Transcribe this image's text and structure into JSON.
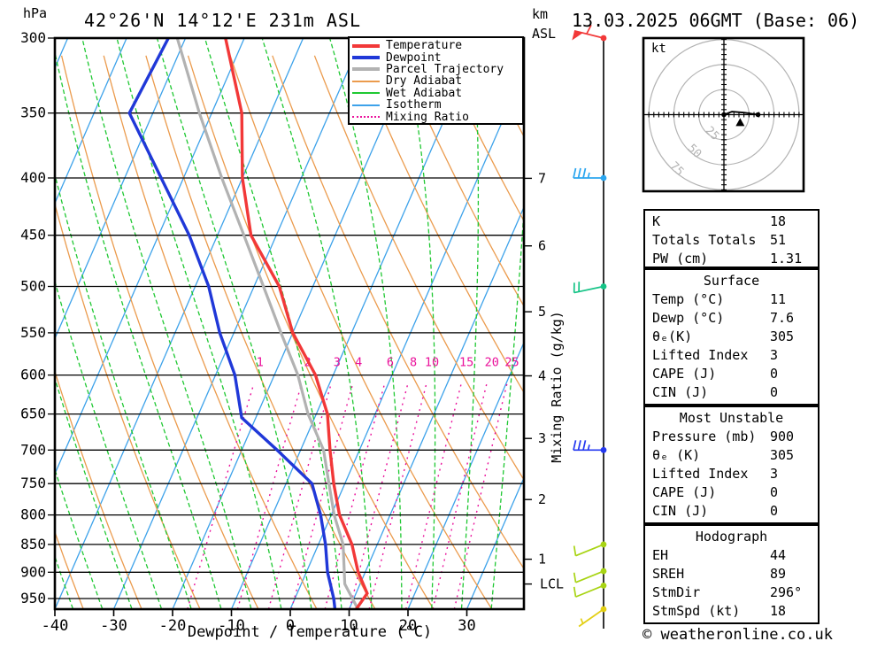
{
  "header": {
    "pressure_unit": "hPa",
    "km_line1": "km",
    "km_line2": "ASL"
  },
  "footer": {
    "copyright": "© weatheronline.co.uk"
  },
  "colors": {
    "temperature": "#f23838",
    "dewpoint": "#2038d8",
    "parcel": "#b2b2b2",
    "dry_adiabat": "#eb9b4d",
    "wet_adiabat": "#1fc832",
    "isotherm": "#3da2ea",
    "mixing_ratio": "#ea119b",
    "grid": "#000000",
    "hodo_rings": "#b4b4b4"
  },
  "legend": [
    {
      "label": "Temperature",
      "color": "#f23838",
      "width": 4,
      "dash": ""
    },
    {
      "label": "Dewpoint",
      "color": "#2038d8",
      "width": 4,
      "dash": ""
    },
    {
      "label": "Parcel Trajectory",
      "color": "#b2b2b2",
      "width": 4,
      "dash": ""
    },
    {
      "label": "Dry Adiabat",
      "color": "#eb9b4d",
      "width": 2,
      "dash": ""
    },
    {
      "label": "Wet Adiabat",
      "color": "#1fc832",
      "width": 2,
      "dash": ""
    },
    {
      "label": "Isotherm",
      "color": "#3da2ea",
      "width": 2,
      "dash": ""
    },
    {
      "label": "Mixing Ratio",
      "color": "#ea119b",
      "width": 2,
      "dash": "2,4"
    }
  ],
  "chart_data": {
    "type": "skewt_sounding",
    "title": "42°26'N 14°12'E 231m ASL",
    "valid": "13.03.2025 06GMT (Base: 06)",
    "x_axis": {
      "label": "Dewpoint / Temperature (°C)",
      "ticks": [
        -40,
        -30,
        -20,
        -10,
        0,
        10,
        20,
        30
      ]
    },
    "pressure_axis": {
      "unit": "hPa",
      "ticks": [
        300,
        350,
        400,
        450,
        500,
        550,
        600,
        650,
        700,
        750,
        800,
        850,
        900,
        950
      ],
      "range": [
        300,
        971
      ]
    },
    "km_axis": {
      "ticks": [
        7,
        6,
        5,
        4,
        3,
        2,
        1
      ],
      "lcl_label": "LCL",
      "lcl_pressure_hpa": 922
    },
    "mixing_ratio_axis": {
      "label": "Mixing Ratio (g/kg)",
      "lines_g_per_kg": [
        1,
        2,
        3,
        4,
        6,
        8,
        10,
        15,
        20,
        25
      ]
    },
    "background": {
      "isotherm_step_c": 10,
      "dry_adiabat_step_k": 10,
      "wet_adiabat_step_c": 5
    },
    "temperature_profile_p_T": [
      [
        971,
        11.2
      ],
      [
        940,
        11.9
      ],
      [
        900,
        8.8
      ],
      [
        850,
        5.7
      ],
      [
        800,
        1.4
      ],
      [
        750,
        -1.9
      ],
      [
        700,
        -5.0
      ],
      [
        650,
        -8.1
      ],
      [
        600,
        -13.0
      ],
      [
        550,
        -20.0
      ],
      [
        500,
        -25.7
      ],
      [
        450,
        -34.3
      ],
      [
        400,
        -40.0
      ],
      [
        350,
        -44.9
      ],
      [
        300,
        -53.2
      ]
    ],
    "dewpoint_profile_p_T": [
      [
        971,
        7.6
      ],
      [
        950,
        6.6
      ],
      [
        900,
        3.6
      ],
      [
        850,
        1.2
      ],
      [
        800,
        -1.8
      ],
      [
        750,
        -5.6
      ],
      [
        700,
        -14.0
      ],
      [
        655,
        -22.4
      ],
      [
        600,
        -26.7
      ],
      [
        550,
        -32.4
      ],
      [
        500,
        -37.7
      ],
      [
        450,
        -44.8
      ],
      [
        400,
        -53.8
      ],
      [
        350,
        -64.0
      ],
      [
        300,
        -62.9
      ]
    ],
    "parcel_profile_p_T": [
      [
        971,
        11.5
      ],
      [
        922,
        7.4
      ],
      [
        850,
        4.2
      ],
      [
        800,
        0.5
      ],
      [
        750,
        -2.7
      ],
      [
        700,
        -6.1
      ],
      [
        650,
        -11.4
      ],
      [
        600,
        -16.0
      ],
      [
        550,
        -22.0
      ],
      [
        500,
        -28.4
      ],
      [
        450,
        -35.5
      ],
      [
        400,
        -43.5
      ],
      [
        350,
        -52.1
      ],
      [
        300,
        -61.4
      ]
    ],
    "wind_barbs": [
      {
        "p": 300,
        "speed_kt": 60,
        "color": "#f23838",
        "flag": 1,
        "full": 1,
        "half": 0,
        "tilt": -14
      },
      {
        "p": 400,
        "speed_kt": 35,
        "color": "#2ba6ef",
        "flag": 0,
        "full": 3,
        "half": 1,
        "tilt": 0
      },
      {
        "p": 500,
        "speed_kt": 20,
        "color": "#16c487",
        "flag": 0,
        "full": 2,
        "half": 0,
        "tilt": 12
      },
      {
        "p": 700,
        "speed_kt": 35,
        "color": "#2438f0",
        "flag": 0,
        "full": 3,
        "half": 1,
        "tilt": 0
      },
      {
        "p": 850,
        "speed_kt": 10,
        "color": "#a8d414",
        "flag": 0,
        "full": 1,
        "half": 0,
        "tilt": 22
      },
      {
        "p": 898,
        "speed_kt": 10,
        "color": "#a8d414",
        "flag": 0,
        "full": 1,
        "half": 0,
        "tilt": 22
      },
      {
        "p": 925,
        "speed_kt": 10,
        "color": "#a8d414",
        "flag": 0,
        "full": 1,
        "half": 0,
        "tilt": 22
      },
      {
        "p": 971,
        "speed_kt": 5,
        "color": "#e3cf13",
        "flag": 0,
        "full": 0,
        "half": 1,
        "tilt": 35
      }
    ],
    "hodograph": {
      "unit_label": "kt",
      "rings_kt": [
        25,
        50,
        75
      ],
      "trace_uv_kt": [
        [
          0,
          0
        ],
        [
          8,
          3
        ],
        [
          20,
          2
        ],
        [
          34,
          0
        ]
      ],
      "storm_dir_deg": 296,
      "storm_spd_kt": 18
    }
  },
  "tables": {
    "stats": {
      "rows": [
        [
          "K",
          "18"
        ],
        [
          "Totals Totals",
          "51"
        ],
        [
          "PW (cm)",
          "1.31"
        ]
      ]
    },
    "surface": {
      "heading": "Surface",
      "rows": [
        [
          "Temp (°C)",
          "11"
        ],
        [
          "Dewp (°C)",
          "7.6"
        ],
        [
          "θₑ(K)",
          "305"
        ],
        [
          "Lifted Index",
          "3"
        ],
        [
          "CAPE (J)",
          "0"
        ],
        [
          "CIN (J)",
          "0"
        ]
      ]
    },
    "most_unstable": {
      "heading": "Most Unstable",
      "rows": [
        [
          "Pressure (mb)",
          "900"
        ],
        [
          "θₑ (K)",
          "305"
        ],
        [
          "Lifted Index",
          "3"
        ],
        [
          "CAPE (J)",
          "0"
        ],
        [
          "CIN (J)",
          "0"
        ]
      ]
    },
    "hodograph": {
      "heading": "Hodograph",
      "rows": [
        [
          "EH",
          "44"
        ],
        [
          "SREH",
          "89"
        ],
        [
          "StmDir",
          "296°"
        ],
        [
          "StmSpd (kt)",
          "18"
        ]
      ]
    }
  }
}
